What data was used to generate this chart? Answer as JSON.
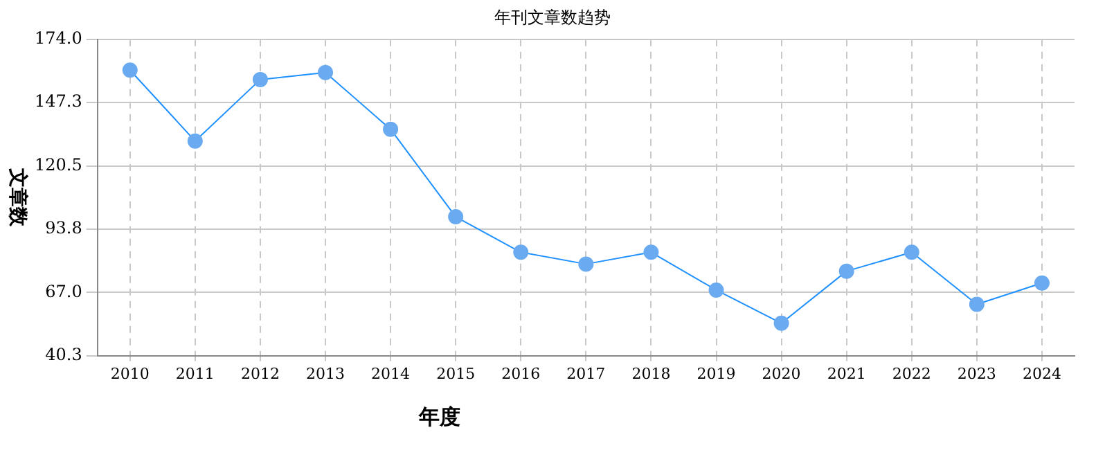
{
  "chart_data": {
    "type": "line",
    "title": "年刊文章数趋势",
    "xlabel": "年度",
    "ylabel": "文章数",
    "categories": [
      "2010",
      "2011",
      "2012",
      "2013",
      "2014",
      "2015",
      "2016",
      "2017",
      "2018",
      "2019",
      "2020",
      "2021",
      "2022",
      "2023",
      "2024"
    ],
    "series": [
      {
        "color": "#1e90ff",
        "values": [
          161,
          131,
          157,
          160,
          136,
          99,
          84,
          79,
          84,
          68,
          54,
          76,
          84,
          62,
          71
        ]
      }
    ],
    "ylim": [
      40.3,
      174
    ],
    "yticks": [
      40.3,
      {
        "value": 67,
        "label": "67.0"
      },
      93.8,
      120.5,
      147.3,
      {
        "value": 174,
        "label": "174.0"
      }
    ],
    "grid": true,
    "legend": false,
    "marker": "circle",
    "line_style": "solid"
  }
}
